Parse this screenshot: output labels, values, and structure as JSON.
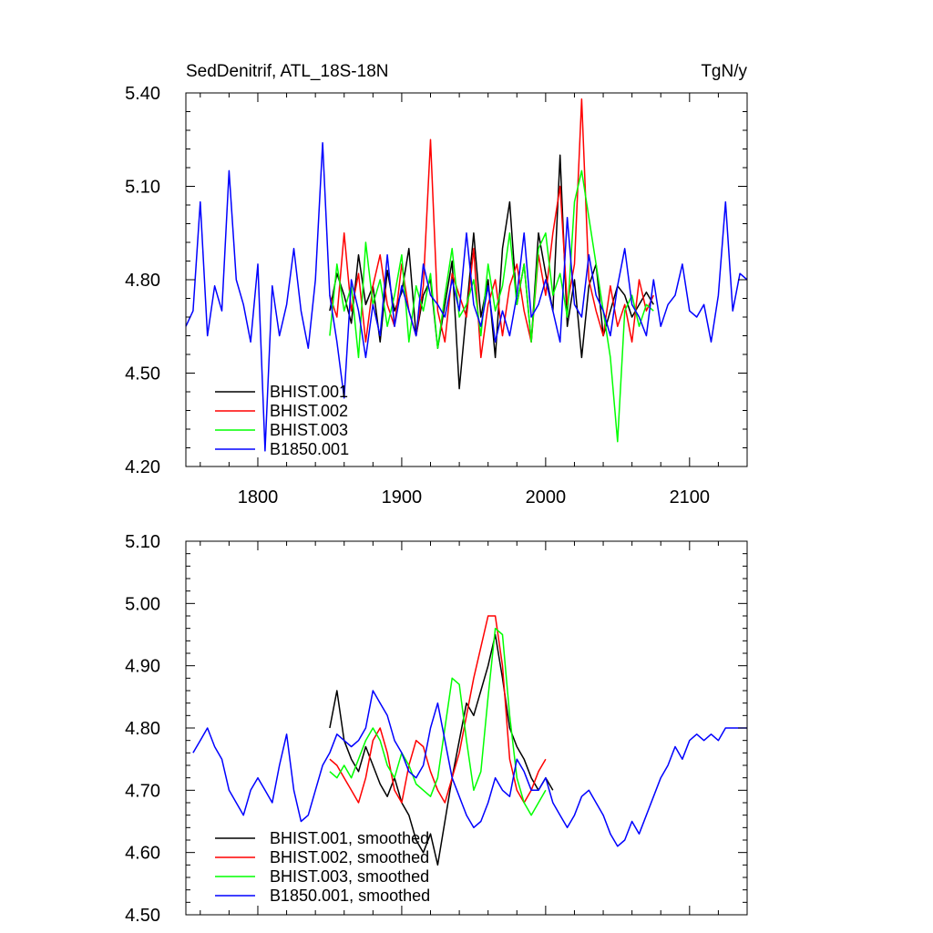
{
  "chart_data": [
    {
      "type": "line",
      "title": "SedDenitrif, ATL_18S-18N",
      "units": "TgN/y",
      "xlim": [
        1750,
        2140
      ],
      "ylim": [
        4.2,
        5.4
      ],
      "xticks": [
        1800,
        1900,
        2000,
        2100
      ],
      "xtick_labels": [
        "1800",
        "1900",
        "2000",
        "2100"
      ],
      "yticks": [
        4.2,
        4.5,
        4.8,
        5.1,
        5.4
      ],
      "ytick_labels": [
        "4.20",
        "4.50",
        "4.80",
        "5.10",
        "5.40"
      ],
      "legend_position": "bottom-left",
      "series": [
        {
          "name": "BHIST.001",
          "color": "#000000",
          "x_start": 1850,
          "x_step": 5,
          "values": [
            4.7,
            4.82,
            4.75,
            4.66,
            4.88,
            4.72,
            4.78,
            4.6,
            4.83,
            4.7,
            4.76,
            4.9,
            4.62,
            4.75,
            4.8,
            4.58,
            4.72,
            4.86,
            4.45,
            4.7,
            4.95,
            4.68,
            4.8,
            4.55,
            4.9,
            5.05,
            4.72,
            4.85,
            4.6,
            4.95,
            4.82,
            4.7,
            5.2,
            4.65,
            4.8,
            4.55,
            4.78,
            4.85,
            4.62,
            4.7,
            4.78,
            4.75,
            4.68,
            4.72,
            4.76,
            4.72
          ]
        },
        {
          "name": "BHIST.002",
          "color": "#ff0000",
          "x_start": 1850,
          "x_step": 5,
          "values": [
            4.75,
            4.68,
            4.95,
            4.7,
            4.82,
            4.6,
            4.78,
            4.88,
            4.72,
            4.65,
            4.85,
            4.7,
            4.62,
            4.78,
            5.25,
            4.7,
            4.6,
            4.82,
            4.75,
            4.68,
            4.9,
            4.55,
            4.72,
            4.8,
            4.62,
            4.78,
            4.85,
            4.7,
            4.6,
            4.88,
            4.75,
            4.95,
            5.1,
            4.72,
            4.85,
            5.38,
            4.8,
            4.7,
            4.62,
            4.78,
            4.65,
            4.72,
            4.6,
            4.8,
            4.7,
            4.75
          ]
        },
        {
          "name": "BHIST.003",
          "color": "#00ff00",
          "x_start": 1850,
          "x_step": 5,
          "values": [
            4.62,
            4.85,
            4.7,
            4.78,
            4.55,
            4.92,
            4.72,
            4.8,
            4.65,
            4.75,
            4.88,
            4.6,
            4.78,
            4.7,
            4.82,
            4.58,
            4.75,
            4.9,
            4.68,
            4.72,
            4.8,
            4.62,
            4.85,
            4.7,
            4.78,
            4.95,
            4.72,
            4.85,
            4.6,
            4.9,
            4.95,
            4.75,
            4.82,
            4.68,
            5.05,
            5.15,
            5.0,
            4.85,
            4.7,
            4.55,
            4.28,
            4.7,
            4.75,
            4.65,
            4.72,
            4.7
          ]
        },
        {
          "name": "B1850.001",
          "color": "#0000ff",
          "x_start": 1750,
          "x_step": 5,
          "values": [
            4.65,
            4.7,
            5.05,
            4.62,
            4.78,
            4.7,
            5.15,
            4.8,
            4.72,
            4.6,
            4.85,
            4.25,
            4.78,
            4.62,
            4.72,
            4.9,
            4.7,
            4.58,
            4.8,
            5.24,
            4.75,
            4.6,
            4.42,
            4.8,
            4.7,
            4.55,
            4.72,
            4.62,
            4.88,
            4.65,
            4.78,
            4.7,
            4.62,
            4.85,
            4.75,
            4.72,
            4.68,
            4.8,
            4.7,
            4.95,
            4.72,
            4.65,
            4.78,
            4.6,
            4.7,
            4.62,
            4.75,
            4.95,
            4.68,
            4.72,
            4.8,
            4.7,
            4.6,
            5.0,
            4.72,
            4.68,
            4.88,
            4.75,
            4.7,
            4.62,
            4.78,
            4.9,
            4.72,
            4.68,
            4.62,
            4.8,
            4.65,
            4.72,
            4.75,
            4.85,
            4.7,
            4.68,
            4.72,
            4.6,
            4.75,
            5.05,
            4.7,
            4.82,
            4.8
          ]
        }
      ]
    },
    {
      "type": "line",
      "xlim": [
        1750,
        2140
      ],
      "ylim": [
        4.5,
        5.1
      ],
      "xticks": [
        1800,
        1900,
        2000,
        2100
      ],
      "yticks": [
        4.5,
        4.6,
        4.7,
        4.8,
        4.9,
        5.0,
        5.1
      ],
      "ytick_labels": [
        "4.50",
        "4.60",
        "4.70",
        "4.80",
        "4.90",
        "5.00",
        "5.10"
      ],
      "legend_position": "bottom-left",
      "series": [
        {
          "name": "BHIST.001, smoothed",
          "color": "#000000",
          "x_start": 1850,
          "x_step": 5,
          "values": [
            4.8,
            4.86,
            4.78,
            4.75,
            4.73,
            4.77,
            4.74,
            4.71,
            4.69,
            4.72,
            4.68,
            4.66,
            4.62,
            4.6,
            4.63,
            4.58,
            4.65,
            4.72,
            4.78,
            4.84,
            4.82,
            4.86,
            4.9,
            4.95,
            4.88,
            4.8,
            4.77,
            4.75,
            4.72,
            4.7,
            4.72,
            4.7
          ]
        },
        {
          "name": "BHIST.002, smoothed",
          "color": "#ff0000",
          "x_start": 1850,
          "x_step": 5,
          "values": [
            4.75,
            4.74,
            4.72,
            4.7,
            4.68,
            4.72,
            4.78,
            4.8,
            4.76,
            4.7,
            4.68,
            4.74,
            4.78,
            4.77,
            4.73,
            4.7,
            4.68,
            4.72,
            4.76,
            4.82,
            4.88,
            4.93,
            4.98,
            4.98,
            4.9,
            4.75,
            4.7,
            4.68,
            4.7,
            4.73,
            4.75
          ]
        },
        {
          "name": "BHIST.003, smoothed",
          "color": "#00ff00",
          "x_start": 1850,
          "x_step": 5,
          "values": [
            4.73,
            4.72,
            4.74,
            4.72,
            4.75,
            4.78,
            4.8,
            4.78,
            4.74,
            4.72,
            4.76,
            4.74,
            4.71,
            4.7,
            4.69,
            4.72,
            4.8,
            4.88,
            4.87,
            4.78,
            4.7,
            4.73,
            4.85,
            4.96,
            4.95,
            4.82,
            4.72,
            4.68,
            4.66,
            4.68,
            4.7
          ]
        },
        {
          "name": "B1850.001, smoothed",
          "color": "#0000ff",
          "x_start": 1755,
          "x_step": 5,
          "values": [
            4.76,
            4.78,
            4.8,
            4.77,
            4.75,
            4.7,
            4.68,
            4.66,
            4.7,
            4.72,
            4.7,
            4.68,
            4.74,
            4.79,
            4.7,
            4.65,
            4.66,
            4.7,
            4.74,
            4.76,
            4.79,
            4.78,
            4.77,
            4.78,
            4.8,
            4.86,
            4.84,
            4.82,
            4.78,
            4.76,
            4.73,
            4.72,
            4.74,
            4.8,
            4.84,
            4.78,
            4.72,
            4.69,
            4.66,
            4.64,
            4.65,
            4.68,
            4.72,
            4.7,
            4.69,
            4.75,
            4.73,
            4.7,
            4.7,
            4.72,
            4.68,
            4.66,
            4.64,
            4.66,
            4.69,
            4.7,
            4.68,
            4.66,
            4.63,
            4.61,
            4.62,
            4.65,
            4.63,
            4.66,
            4.69,
            4.72,
            4.74,
            4.77,
            4.75,
            4.78,
            4.79,
            4.78,
            4.79,
            4.78,
            4.8,
            4.8,
            4.8,
            4.8
          ]
        }
      ]
    }
  ]
}
